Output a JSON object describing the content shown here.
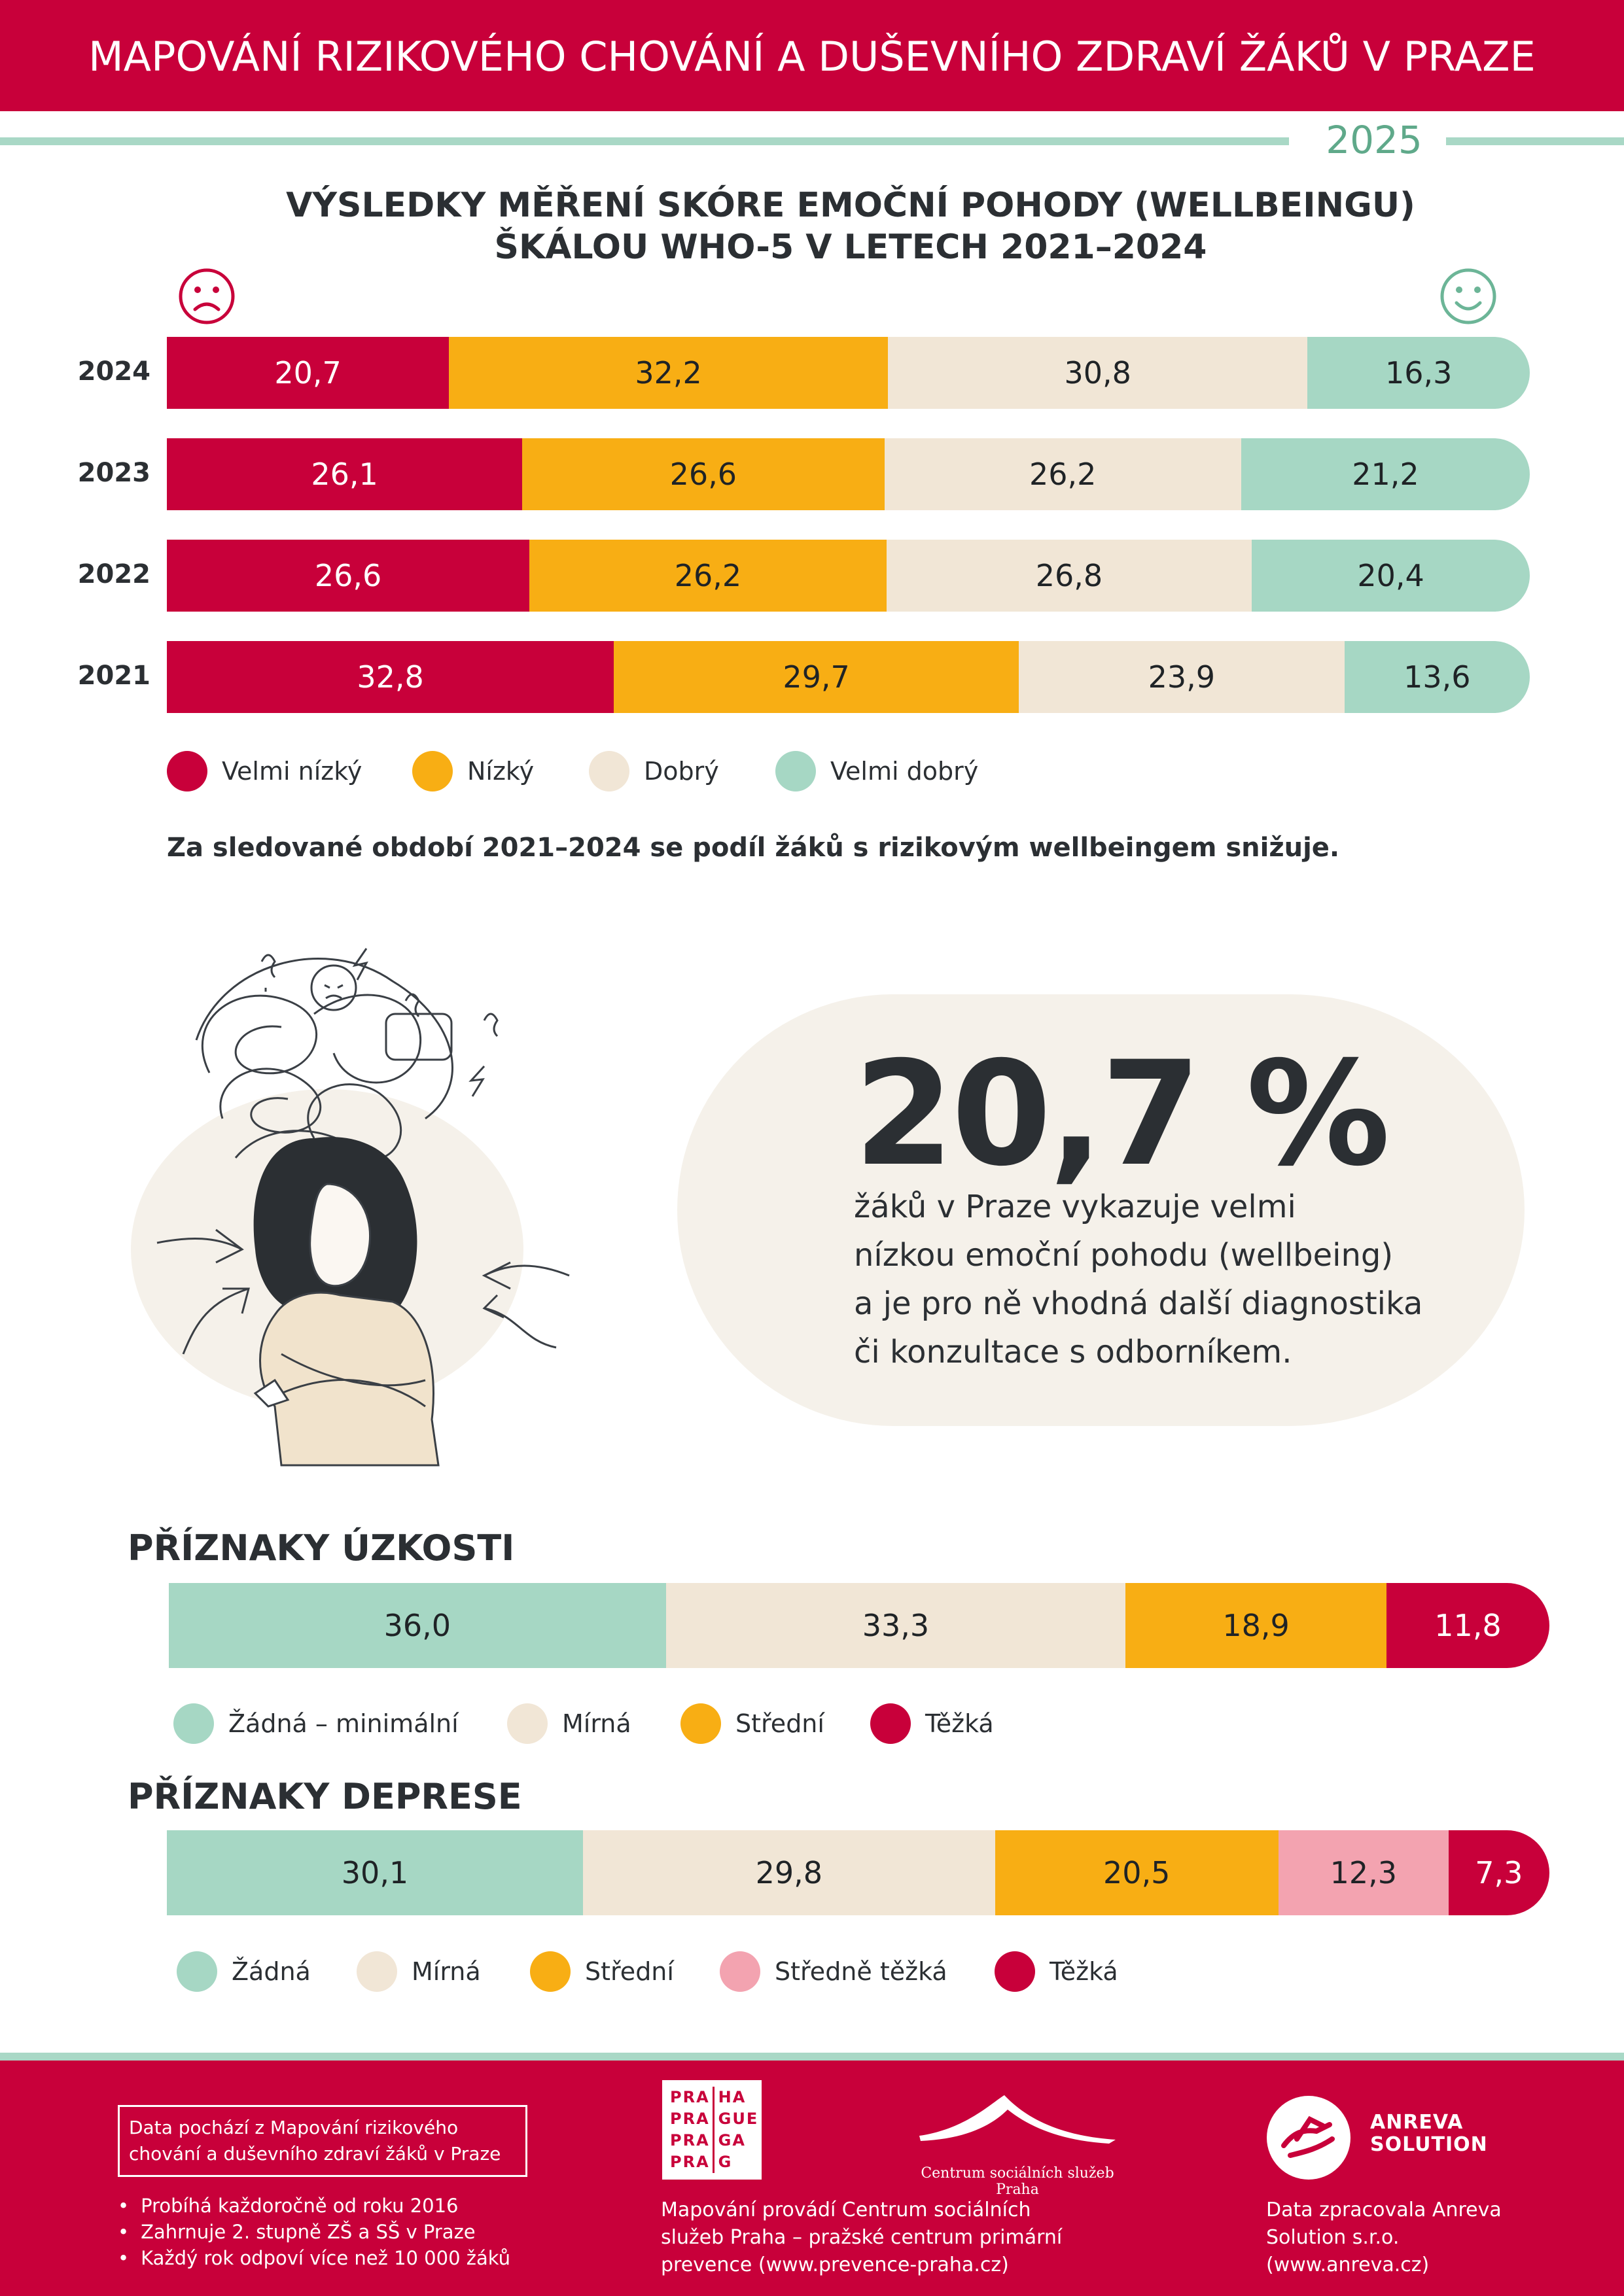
{
  "header": {
    "title": "MAPOVÁNÍ RIZIKOVÉHO CHOVÁNÍ A DUŠEVNÍHO ZDRAVÍ ŽÁKŮ V PRAZE",
    "year": "2025"
  },
  "colors": {
    "brand_red": "#c8003a",
    "orange": "#f8ae14",
    "beige": "#f1e6d6",
    "mint": "#a6d7c4",
    "pink": "#f3a3b0"
  },
  "icons": {
    "sad": "sad-face-icon",
    "happy": "happy-face-icon"
  },
  "wellbeing": {
    "title_line1": "VÝSLEDKY MĚŘENÍ SKÓRE EMOČNÍ POHODY (WELLBEINGU)",
    "title_line2": "ŠKÁLOU WHO-5 V LETECH 2021–2024",
    "legend": [
      "Velmi nízký",
      "Nízký",
      "Dobrý",
      "Velmi dobrý"
    ],
    "note": "Za sledované období 2021–2024 se podíl žáků s rizikovým wellbeingem snižuje."
  },
  "callout": {
    "value": "20,7 %",
    "text_lines": [
      "žáků  v Praze vykazuje velmi",
      "nízkou emoční pohodu (wellbeing)",
      "a je pro ně vhodná další diagnostika",
      "či konzultace s odborníkem."
    ]
  },
  "anxiety": {
    "title": "PŘÍZNAKY ÚZKOSTI",
    "legend": [
      "Žádná – minimální",
      "Mírná",
      "Střední",
      "Těžká"
    ]
  },
  "depression": {
    "title": "PŘÍZNAKY DEPRESE",
    "legend": [
      "Žádná",
      "Mírná",
      "Střední",
      "Středně těžká",
      "Těžká"
    ]
  },
  "chart_data": [
    {
      "type": "bar",
      "stacked": true,
      "orientation": "horizontal",
      "title": "VÝSLEDKY MĚŘENÍ SKÓRE EMOČNÍ POHODY (WELLBEINGU) ŠKÁLOU WHO-5 V LETECH 2021–2024",
      "categories": [
        "2024",
        "2023",
        "2022",
        "2021"
      ],
      "series": [
        {
          "name": "Velmi nízký",
          "color": "#c8003a",
          "values": [
            20.7,
            26.1,
            26.6,
            32.8
          ],
          "labels": [
            "20,7",
            "26,1",
            "26,6",
            "32,8"
          ]
        },
        {
          "name": "Nízký",
          "color": "#f8ae14",
          "values": [
            32.2,
            26.6,
            26.2,
            29.7
          ],
          "labels": [
            "32,2",
            "26,6",
            "26,2",
            "29,7"
          ]
        },
        {
          "name": "Dobrý",
          "color": "#f1e6d6",
          "values": [
            30.8,
            26.2,
            26.8,
            23.9
          ],
          "labels": [
            "30,8",
            "26,2",
            "26,8",
            "23,9"
          ]
        },
        {
          "name": "Velmi dobrý",
          "color": "#a6d7c4",
          "values": [
            16.3,
            21.2,
            20.4,
            13.6
          ],
          "labels": [
            "16,3",
            "21,2",
            "20,4",
            "13,6"
          ]
        }
      ]
    },
    {
      "type": "bar",
      "stacked": true,
      "orientation": "horizontal",
      "title": "PŘÍZNAKY ÚZKOSTI",
      "series": [
        {
          "name": "Žádná – minimální",
          "color": "#a6d7c4",
          "value": 36.0,
          "label": "36,0"
        },
        {
          "name": "Mírná",
          "color": "#f1e6d6",
          "value": 33.3,
          "label": "33,3"
        },
        {
          "name": "Střední",
          "color": "#f8ae14",
          "value": 18.9,
          "label": "18,9"
        },
        {
          "name": "Těžká",
          "color": "#c8003a",
          "value": 11.8,
          "label": "11,8"
        }
      ]
    },
    {
      "type": "bar",
      "stacked": true,
      "orientation": "horizontal",
      "title": "PŘÍZNAKY DEPRESE",
      "series": [
        {
          "name": "Žádná",
          "color": "#a6d7c4",
          "value": 30.1,
          "label": "30,1"
        },
        {
          "name": "Mírná",
          "color": "#f1e6d6",
          "value": 29.8,
          "label": "29,8"
        },
        {
          "name": "Střední",
          "color": "#f8ae14",
          "value": 20.5,
          "label": "20,5"
        },
        {
          "name": "Středně těžká",
          "color": "#f3a3b0",
          "value": 12.3,
          "label": "12,3"
        },
        {
          "name": "Těžká",
          "color": "#c8003a",
          "value": 7.3,
          "label": "7,3"
        }
      ]
    }
  ],
  "footer": {
    "source_box": "Data pochází z Mapování rizikového chování a duševního zdraví žáků v Praze",
    "bullets": [
      "Probíhá každoročně od roku 2016",
      "Zahrnuje 2. stupně ZŠ a SŠ v Praze",
      "Každý rok odpoví více než 10 000 žáků"
    ],
    "praha_logo": [
      "PRA",
      "HA",
      "PRA",
      "GUE",
      "PRA",
      "GA",
      "PRA",
      "G"
    ],
    "csspraha_logo": "Centrum sociálních služeb Praha",
    "middle_text": [
      "Mapování provádí Centrum sociálních",
      "služeb Praha – pražské centrum primární",
      "prevence (www.prevence-praha.cz)"
    ],
    "anreva_logo": [
      "ANREVA",
      "SOLUTION"
    ],
    "right_text": [
      "Data zpracovala Anreva",
      "Solution s.r.o.",
      "(www.anreva.cz)"
    ]
  }
}
